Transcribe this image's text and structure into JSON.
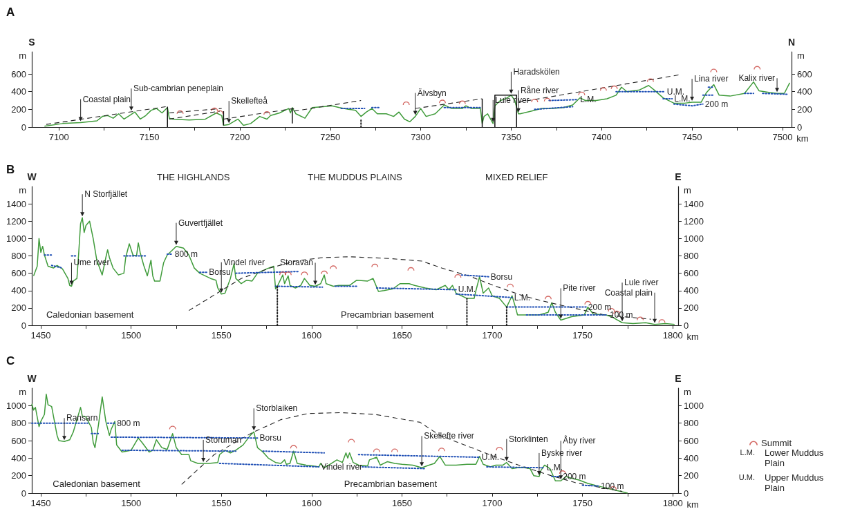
{
  "chart_data": [
    {
      "type": "line",
      "title": "A",
      "xlabel": "km",
      "ylabel": "m",
      "y2label": "m",
      "xlim": [
        7085,
        7505
      ],
      "ylim": [
        0,
        850
      ],
      "y2lim": [
        0,
        850
      ],
      "xticks": [
        7100,
        {
          "value": 7125,
          "label": null
        },
        7150,
        {
          "value": 7175,
          "label": null
        },
        7200,
        {
          "value": 7225,
          "label": null
        },
        7250,
        {
          "value": 7275,
          "label": null
        },
        7300,
        {
          "value": 7325,
          "label": null
        },
        7350,
        {
          "value": 7375,
          "label": null
        },
        7400,
        {
          "value": 7425,
          "label": null
        },
        7450,
        {
          "value": 7475,
          "label": null
        },
        7500
      ],
      "yticks": [
        0,
        200,
        400,
        600
      ],
      "y2ticks": [
        0,
        200,
        400,
        600
      ],
      "series": [
        {
          "color": "#3f9b3a",
          "line_style": "solid",
          "x": [
            7092,
            7102,
            7112,
            7121,
            7124,
            7127,
            7130,
            7133,
            7136,
            7139,
            7142,
            7145,
            7148,
            7151,
            7154,
            7157,
            7160,
            7161,
            7163,
            7172,
            7181,
            7187,
            7188,
            7190,
            7191,
            7194,
            7199,
            7202,
            7206,
            7211,
            7215,
            7217,
            7222,
            7227,
            7228,
            7229,
            7231,
            7236,
            7240,
            7246,
            7251,
            7255,
            7260,
            7264,
            7267,
            7270,
            7273,
            7276,
            7281,
            7285,
            7288,
            7291,
            7294,
            7297,
            7300,
            7303,
            7308,
            7313,
            7317,
            7323,
            7325,
            7328,
            7333,
            7334,
            7335,
            7337,
            7340,
            7341,
            7344,
            7347,
            7350,
            7352,
            7354,
            7355,
            7361,
            7367,
            7373,
            7379,
            7384,
            7388,
            7391,
            7397,
            7403,
            7408,
            7411,
            7414,
            7421,
            7426,
            7429,
            7434,
            7440,
            7446,
            7450,
            7455,
            7458,
            7462,
            7465,
            7471,
            7479,
            7484,
            7487,
            7493,
            7497,
            7501,
            7504
          ],
          "values": [
            10,
            40,
            50,
            70,
            120,
            130,
            100,
            150,
            90,
            130,
            170,
            90,
            130,
            190,
            210,
            160,
            220,
            100,
            90,
            80,
            90,
            160,
            150,
            130,
            20,
            30,
            90,
            20,
            40,
            120,
            90,
            130,
            160,
            210,
            160,
            220,
            150,
            100,
            220,
            230,
            240,
            220,
            200,
            190,
            120,
            170,
            210,
            150,
            150,
            120,
            170,
            90,
            60,
            120,
            210,
            120,
            150,
            250,
            210,
            210,
            240,
            210,
            210,
            40,
            120,
            150,
            40,
            240,
            300,
            320,
            360,
            300,
            150,
            150,
            180,
            210,
            210,
            220,
            250,
            330,
            300,
            300,
            320,
            360,
            450,
            400,
            420,
            470,
            420,
            330,
            270,
            270,
            280,
            280,
            390,
            480,
            360,
            350,
            380,
            510,
            410,
            390,
            380,
            380,
            500
          ]
        },
        {
          "type": "scatter",
          "color": "#c8403a",
          "x": [
            7167,
            7186,
            7189,
            7215,
            7292,
            7312,
            7323,
            7363,
            7370,
            7389,
            7401,
            7407,
            7427,
            7462,
            7486
          ],
          "values": [
            170,
            200,
            170,
            160,
            270,
            290,
            280,
            300,
            310,
            380,
            430,
            450,
            530,
            640,
            670
          ]
        },
        {
          "color": "#1f4fb5",
          "line_style": "dotted",
          "x": [
            7256,
            7269
          ],
          "values": [
            210,
            210
          ]
        },
        {
          "color": "#1f4fb5",
          "line_style": "dotted",
          "x": [
            7273,
            7277
          ],
          "values": [
            220,
            220
          ]
        },
        {
          "color": "#1f4fb5",
          "line_style": "dotted",
          "x": [
            7313,
            7333
          ],
          "values": [
            220,
            220
          ]
        },
        {
          "color": "#1f4fb5",
          "line_style": "dotted",
          "x": [
            7363,
            7384
          ],
          "values": [
            200,
            230
          ]
        },
        {
          "color": "#1f4fb5",
          "line_style": "dotted",
          "x": [
            7371,
            7387
          ],
          "values": [
            300,
            310
          ]
        },
        {
          "color": "#1f4fb5",
          "line_style": "dotted",
          "x": [
            7408,
            7435
          ],
          "values": [
            400,
            400
          ]
        },
        {
          "color": "#1f4fb5",
          "line_style": "dotted",
          "x": [
            7434,
            7439
          ],
          "values": [
            320,
            320
          ]
        },
        {
          "color": "#1f4fb5",
          "line_style": "dotted",
          "x": [
            7440,
            7450,
            7456
          ],
          "values": [
            260,
            240,
            260
          ]
        },
        {
          "color": "#1f4fb5",
          "line_style": "dotted",
          "x": [
            7456,
            7462
          ],
          "values": [
            360,
            360
          ]
        },
        {
          "color": "#1f4fb5",
          "line_style": "dotted",
          "x": [
            7459,
            7462
          ],
          "values": [
            450,
            450
          ]
        },
        {
          "color": "#1f4fb5",
          "line_style": "dotted",
          "x": [
            7479,
            7484
          ],
          "values": [
            380,
            380
          ]
        },
        {
          "color": "#1f4fb5",
          "line_style": "dotted",
          "x": [
            7489,
            7503
          ],
          "values": [
            380,
            370
          ]
        },
        {
          "color": "#222222",
          "line_style": "dashed",
          "x": [
            7093,
            7159
          ],
          "values": [
            30,
            230
          ]
        },
        {
          "color": "#222222",
          "line_style": "dashed",
          "x": [
            7161,
            7190
          ],
          "values": [
            160,
            210
          ]
        },
        {
          "color": "#222222",
          "line_style": "dashed",
          "x": [
            7161,
            7189
          ],
          "values": [
            90,
            180
          ]
        },
        {
          "color": "#222222",
          "line_style": "dashed",
          "x": [
            7191,
            7230
          ],
          "values": [
            90,
            210
          ]
        },
        {
          "color": "#222222",
          "line_style": "dashed",
          "x": [
            7230,
            7267
          ],
          "values": [
            180,
            300
          ]
        },
        {
          "color": "#222222",
          "line_style": "dashed",
          "x": [
            7297,
            7334
          ],
          "values": [
            210,
            320
          ]
        },
        {
          "color": "#222222",
          "line_style": "dashed",
          "x": [
            7354,
            7443
          ],
          "values": [
            280,
            590
          ]
        },
        {
          "color": "#222222",
          "line_style": "dotted",
          "x": [
            7267,
            7267
          ],
          "values": [
            0,
            90
          ]
        },
        {
          "color": "#111111",
          "line_style": "solid",
          "x": [
            7160,
            7160
          ],
          "values": [
            0,
            230
          ]
        },
        {
          "color": "#111111",
          "line_style": "solid",
          "x": [
            7191,
            7191
          ],
          "values": [
            20,
            180
          ]
        },
        {
          "color": "#111111",
          "line_style": "solid",
          "x": [
            7229,
            7229
          ],
          "values": [
            40,
            210
          ]
        },
        {
          "color": "#111111",
          "line_style": "solid",
          "x": [
            7334,
            7334
          ],
          "values": [
            0,
            320
          ]
        },
        {
          "color": "#111111",
          "line_style": "solid",
          "x": [
            7341,
            7341,
            7353,
            7353
          ],
          "values": [
            0,
            360,
            360,
            0
          ]
        }
      ],
      "annotations": [
        "S",
        "N",
        {
          "text": "Coastal plain",
          "x": 7112,
          "y": 50
        },
        {
          "text": "Sub-cambrian peneplain",
          "x": 7140,
          "y": 170
        },
        {
          "text": "Skellefteå",
          "x": 7194,
          "y": 30
        },
        {
          "text": "Älvsbyn",
          "x": 7297,
          "y": 120
        },
        {
          "text": "Haradskölen",
          "x": 7350,
          "y": 360
        },
        {
          "text": "Lule river",
          "x": 7340,
          "y": 40
        },
        {
          "text": "Råne river",
          "x": 7354,
          "y": 150
        },
        {
          "text": "L.M.",
          "x": 7387,
          "y": 310
        },
        {
          "text": "U.M.",
          "x": 7435,
          "y": 400
        },
        {
          "text": "L.M.",
          "x": 7439,
          "y": 320
        },
        {
          "text": "200 m",
          "x": 7456,
          "y": 260
        },
        {
          "text": "Kalix river",
          "x": 7497,
          "y": 380
        },
        {
          "text": "Lina river",
          "x": 7450,
          "y": 280
        }
      ]
    },
    {
      "type": "line",
      "title": "B",
      "xlabel": "km",
      "ylabel": "m",
      "y2label": "m",
      "xlim": [
        1445,
        1803
      ],
      "ylim": [
        0,
        1600
      ],
      "y2lim": [
        0,
        1600
      ],
      "xticks": [
        1450,
        {
          "value": 1475,
          "label": null
        },
        1500,
        {
          "value": 1525,
          "label": null
        },
        1550,
        {
          "value": 1575,
          "label": null
        },
        1600,
        {
          "value": 1625,
          "label": null
        },
        1650,
        {
          "value": 1675,
          "label": null
        },
        1700,
        {
          "value": 1725,
          "label": null
        },
        1750,
        {
          "value": 1775,
          "label": null
        },
        1800
      ],
      "yticks": [
        0,
        200,
        400,
        600,
        800,
        1000,
        1200,
        1400
      ],
      "y2ticks": [
        0,
        200,
        400,
        600,
        800,
        1000,
        1200,
        1400
      ],
      "series": [
        {
          "color": "#3f9b3a",
          "line_style": "solid",
          "x": [
            1446,
            1448,
            1449,
            1450,
            1451,
            1452,
            1454,
            1457,
            1459,
            1462,
            1465,
            1466,
            1467,
            1468,
            1470,
            1471,
            1472,
            1473,
            1474,
            1475,
            1477,
            1479,
            1481,
            1484,
            1486,
            1487,
            1488,
            1490,
            1493,
            1496,
            1497,
            1499,
            1501,
            1503,
            1504,
            1505,
            1507,
            1509,
            1511,
            1512,
            1513,
            1516,
            1518,
            1520,
            1525,
            1529,
            1532,
            1535,
            1538,
            1544,
            1547,
            1548,
            1550,
            1552,
            1555,
            1557,
            1558,
            1561,
            1564,
            1567,
            1570,
            1575,
            1579,
            1580,
            1581,
            1584,
            1585,
            1587,
            1588,
            1591,
            1594,
            1596,
            1599,
            1602,
            1605,
            1607,
            1608,
            1612,
            1615,
            1621,
            1625,
            1631,
            1634,
            1637,
            1640,
            1645,
            1649,
            1654,
            1657,
            1663,
            1669,
            1674,
            1676,
            1678,
            1680,
            1686,
            1690,
            1691,
            1693,
            1695,
            1698,
            1700,
            1704,
            1708,
            1711,
            1713,
            1714,
            1720,
            1726,
            1731,
            1733,
            1735,
            1738,
            1744,
            1751,
            1753,
            1756,
            1763,
            1766,
            1772,
            1778,
            1785,
            1790,
            1796,
            1801
          ],
          "values": [
            570,
            680,
            1000,
            840,
            910,
            810,
            680,
            660,
            690,
            650,
            540,
            460,
            450,
            510,
            540,
            840,
            1170,
            1240,
            1070,
            1150,
            1200,
            1000,
            750,
            580,
            780,
            870,
            780,
            660,
            580,
            600,
            780,
            940,
            810,
            800,
            950,
            840,
            690,
            570,
            750,
            570,
            510,
            510,
            720,
            810,
            910,
            890,
            810,
            660,
            600,
            540,
            520,
            430,
            360,
            370,
            540,
            710,
            540,
            480,
            520,
            510,
            600,
            650,
            680,
            420,
            450,
            580,
            480,
            570,
            460,
            430,
            460,
            540,
            460,
            450,
            480,
            580,
            480,
            450,
            460,
            460,
            520,
            510,
            540,
            390,
            400,
            420,
            480,
            480,
            460,
            430,
            410,
            460,
            410,
            460,
            370,
            310,
            310,
            400,
            560,
            370,
            430,
            340,
            310,
            210,
            340,
            200,
            120,
            120,
            120,
            150,
            260,
            150,
            60,
            100,
            120,
            210,
            130,
            120,
            100,
            30,
            20,
            30,
            10,
            20,
            10
          ]
        },
        {
          "type": "scatter",
          "color": "#c8403a",
          "x": [
            1584,
            1587,
            1596,
            1607,
            1612,
            1635,
            1655,
            1681,
            1710,
            1731,
            1753,
            1766,
            1769,
            1782,
            1794
          ],
          "values": [
            600,
            600,
            600,
            610,
            670,
            690,
            650,
            570,
            460,
            320,
            260,
            180,
            150,
            80,
            50
          ]
        },
        {
          "color": "#222222",
          "line_style": "dashed",
          "x": [
            1532,
            1550,
            1561,
            1577,
            1591,
            1606,
            1621,
            1643,
            1661,
            1672,
            1687,
            1702,
            1717,
            1732,
            1747,
            1762,
            1788
          ],
          "values": [
            170,
            400,
            540,
            660,
            740,
            780,
            790,
            770,
            740,
            660,
            570,
            450,
            340,
            260,
            190,
            120,
            70
          ]
        },
        {
          "color": "#1f4fb5",
          "line_style": "dotted",
          "x": [
            1452,
            1456
          ],
          "values": [
            810,
            810
          ]
        },
        {
          "color": "#1f4fb5",
          "line_style": "dotted",
          "x": [
            1456,
            1462
          ],
          "values": [
            690,
            660
          ]
        },
        {
          "color": "#1f4fb5",
          "line_style": "dotted",
          "x": [
            1467,
            1470
          ],
          "values": [
            800,
            800
          ]
        },
        {
          "color": "#1f4fb5",
          "line_style": "dotted",
          "x": [
            1496,
            1508
          ],
          "values": [
            800,
            800
          ]
        },
        {
          "color": "#1f4fb5",
          "line_style": "dotted",
          "x": [
            1520,
            1523
          ],
          "values": [
            820,
            820
          ]
        },
        {
          "color": "#1f4fb5",
          "line_style": "dotted",
          "x": [
            1538,
            1542
          ],
          "values": [
            610,
            610
          ]
        },
        {
          "color": "#1f4fb5",
          "line_style": "dotted",
          "x": [
            1558,
            1593
          ],
          "values": [
            600,
            620
          ]
        },
        {
          "color": "#1f4fb5",
          "line_style": "dotted",
          "x": [
            1580,
            1606
          ],
          "values": [
            450,
            440
          ]
        },
        {
          "color": "#1f4fb5",
          "line_style": "dotted",
          "x": [
            1613,
            1625
          ],
          "values": [
            450,
            450
          ]
        },
        {
          "color": "#1f4fb5",
          "line_style": "dotted",
          "x": [
            1636,
            1680
          ],
          "values": [
            430,
            410
          ]
        },
        {
          "color": "#1f4fb5",
          "line_style": "dotted",
          "x": [
            1683,
            1698
          ],
          "values": [
            580,
            560
          ]
        },
        {
          "color": "#1f4fb5",
          "line_style": "dotted",
          "x": [
            1680,
            1711
          ],
          "values": [
            360,
            320
          ]
        },
        {
          "color": "#1f4fb5",
          "line_style": "dotted",
          "x": [
            1708,
            1752
          ],
          "values": [
            210,
            210
          ]
        },
        {
          "color": "#1f4fb5",
          "line_style": "dotted",
          "x": [
            1719,
            1764
          ],
          "values": [
            120,
            120
          ]
        },
        {
          "color": "#222222",
          "line_style": "dotted",
          "x": [
            1581,
            1581
          ],
          "values": [
            0,
            450
          ]
        },
        {
          "color": "#222222",
          "line_style": "dotted",
          "x": [
            1686,
            1686
          ],
          "values": [
            0,
            310
          ]
        },
        {
          "color": "#222222",
          "line_style": "dotted",
          "x": [
            1708,
            1708
          ],
          "values": [
            0,
            210
          ]
        }
      ],
      "annotations": [
        "W",
        "THE HIGHLANDS",
        "THE MUDDUS PLAINS",
        "MIXED RELIEF",
        "E",
        "Caledonian basement",
        "Precambrian basement",
        {
          "text": "N Storfjället",
          "x": 1473,
          "y": 1240
        },
        {
          "text": "Ume river",
          "x": 1467,
          "y": 450
        },
        {
          "text": "Guvertfjället",
          "x": 1525,
          "y": 910
        },
        {
          "text": "800 m",
          "x": 1523,
          "y": 820
        },
        {
          "text": "Borsu",
          "x": 1542,
          "y": 610
        },
        {
          "text": "Vindel river",
          "x": 1550,
          "y": 360
        },
        {
          "text": "Storavan",
          "x": 1602,
          "y": 450
        },
        {
          "text": "U.M.",
          "x": 1680,
          "y": 410
        },
        {
          "text": "Borsu",
          "x": 1698,
          "y": 560
        },
        {
          "text": "L.M.",
          "x": 1711,
          "y": 320
        },
        {
          "text": "Pite river",
          "x": 1738,
          "y": 60
        },
        {
          "text": "200 m",
          "x": 1752,
          "y": 210
        },
        {
          "text": "100 m",
          "x": 1764,
          "y": 120
        },
        {
          "text": "Coastal plain",
          "x": 1790,
          "y": 10
        },
        {
          "text": "Lule river",
          "x": 1772,
          "y": 30
        }
      ]
    },
    {
      "type": "line",
      "title": "C",
      "xlabel": "km",
      "ylabel": "m",
      "y2label": "m",
      "legend": "right",
      "xlim": [
        1445,
        1803
      ],
      "ylim": [
        0,
        1200
      ],
      "y2lim": [
        0,
        1200
      ],
      "xticks": [
        1450,
        {
          "value": 1475,
          "label": null
        },
        1500,
        {
          "value": 1525,
          "label": null
        },
        1550,
        {
          "value": 1575,
          "label": null
        },
        1600,
        {
          "value": 1625,
          "label": null
        },
        1650,
        {
          "value": 1675,
          "label": null
        },
        1700,
        {
          "value": 1725,
          "label": null
        },
        1750,
        {
          "value": 1775,
          "label": null
        },
        1800
      ],
      "yticks": [
        0,
        200,
        400,
        600,
        800,
        1000
      ],
      "y2ticks": [
        0,
        200,
        400,
        600,
        800,
        1000
      ],
      "series": [
        {
          "color": "#3f9b3a",
          "line_style": "solid",
          "x": [
            1445,
            1446,
            1447,
            1448,
            1449,
            1450,
            1452,
            1453,
            1454,
            1456,
            1457,
            1459,
            1460,
            1463,
            1466,
            1468,
            1470,
            1472,
            1473,
            1475,
            1478,
            1479,
            1480,
            1482,
            1484,
            1486,
            1488,
            1489,
            1491,
            1492,
            1495,
            1500,
            1504,
            1506,
            1510,
            1512,
            1514,
            1517,
            1520,
            1523,
            1525,
            1528,
            1532,
            1533,
            1537,
            1543,
            1548,
            1549,
            1552,
            1555,
            1558,
            1562,
            1566,
            1568,
            1570,
            1573,
            1576,
            1580,
            1583,
            1585,
            1586,
            1588,
            1590,
            1592,
            1597,
            1601,
            1604,
            1605,
            1607,
            1611,
            1614,
            1617,
            1619,
            1620,
            1621,
            1623,
            1626,
            1631,
            1632,
            1636,
            1638,
            1642,
            1646,
            1650,
            1656,
            1661,
            1665,
            1668,
            1671,
            1674,
            1680,
            1686,
            1691,
            1693,
            1695,
            1699,
            1702,
            1706,
            1708,
            1711,
            1714,
            1718,
            1721,
            1723,
            1726,
            1727,
            1729,
            1732,
            1735,
            1738,
            1741,
            1744,
            1748,
            1753,
            1759,
            1765,
            1771,
            1775
          ],
          "values": [
            1020,
            950,
            980,
            870,
            760,
            820,
            900,
            1130,
            1010,
            990,
            880,
            660,
            600,
            590,
            610,
            700,
            840,
            980,
            880,
            870,
            750,
            580,
            520,
            790,
            1100,
            820,
            660,
            730,
            820,
            550,
            470,
            490,
            630,
            580,
            470,
            490,
            610,
            520,
            500,
            680,
            520,
            440,
            440,
            370,
            340,
            340,
            350,
            440,
            490,
            460,
            490,
            550,
            660,
            700,
            520,
            470,
            400,
            350,
            340,
            380,
            330,
            340,
            480,
            340,
            320,
            310,
            300,
            340,
            290,
            340,
            380,
            350,
            460,
            400,
            460,
            350,
            320,
            310,
            380,
            410,
            320,
            360,
            340,
            330,
            320,
            290,
            320,
            340,
            420,
            320,
            320,
            330,
            330,
            420,
            330,
            300,
            320,
            320,
            350,
            280,
            290,
            290,
            280,
            200,
            190,
            260,
            320,
            280,
            140,
            140,
            190,
            170,
            150,
            110,
            80,
            50,
            20,
            0
          ]
        },
        {
          "type": "scatter",
          "name": "Summit",
          "color": "#c8403a",
          "x": [
            1523,
            1590,
            1622,
            1636,
            1646,
            1672,
            1704,
            1739,
            1767
          ],
          "values": [
            750,
            530,
            600,
            490,
            490,
            500,
            510,
            240,
            60
          ]
        },
        {
          "color": "#222222",
          "line_style": "dashed",
          "x": [
            1528,
            1546,
            1567,
            1583,
            1598,
            1616,
            1635,
            1660,
            1671,
            1686,
            1701,
            1716,
            1731,
            1746,
            1761,
            1772
          ],
          "values": [
            100,
            440,
            690,
            840,
            910,
            920,
            900,
            810,
            660,
            540,
            420,
            310,
            210,
            120,
            60,
            20
          ]
        },
        {
          "color": "#1f4fb5",
          "line_style": "dotted",
          "x": [
            1445,
            1476
          ],
          "values": [
            800,
            800
          ]
        },
        {
          "color": "#1f4fb5",
          "line_style": "dotted",
          "x": [
            1487,
            1491
          ],
          "values": [
            800,
            800
          ]
        },
        {
          "color": "#1f4fb5",
          "line_style": "dotted",
          "x": [
            1478,
            1482
          ],
          "values": [
            680,
            680
          ]
        },
        {
          "color": "#1f4fb5",
          "line_style": "dotted",
          "x": [
            1489,
            1570
          ],
          "values": [
            640,
            630
          ]
        },
        {
          "color": "#1f4fb5",
          "line_style": "dotted",
          "x": [
            1495,
            1558
          ],
          "values": [
            490,
            480
          ]
        },
        {
          "color": "#1f4fb5",
          "line_style": "dotted",
          "x": [
            1573,
            1607
          ],
          "values": [
            480,
            460
          ]
        },
        {
          "color": "#1f4fb5",
          "line_style": "dotted",
          "x": [
            1549,
            1604
          ],
          "values": [
            340,
            300
          ]
        },
        {
          "color": "#1f4fb5",
          "line_style": "dotted",
          "x": [
            1626,
            1693
          ],
          "values": [
            440,
            410
          ]
        },
        {
          "color": "#1f4fb5",
          "line_style": "dotted",
          "x": [
            1628,
            1663
          ],
          "values": [
            300,
            280
          ]
        },
        {
          "color": "#1f4fb5",
          "line_style": "dotted",
          "x": [
            1697,
            1729
          ],
          "values": [
            300,
            290
          ]
        },
        {
          "color": "#1f4fb5",
          "line_style": "dotted",
          "x": [
            1733,
            1738
          ],
          "values": [
            190,
            190
          ]
        },
        {
          "color": "#1f4fb5",
          "line_style": "dotted",
          "x": [
            1750,
            1759
          ],
          "values": [
            90,
            80
          ]
        }
      ],
      "annotations": [
        "W",
        "E",
        "Caledonian basement",
        "Precambrian basement",
        {
          "text": "Ransarn",
          "x": 1463,
          "y": 590
        },
        {
          "text": "800 m",
          "x": 1491,
          "y": 800
        },
        {
          "text": "Storuman",
          "x": 1540,
          "y": 340
        },
        {
          "text": "Storblaiken",
          "x": 1568,
          "y": 700
        },
        {
          "text": "Borsu",
          "x": 1570,
          "y": 630
        },
        {
          "text": "Vindel river",
          "x": 1604,
          "y": 300
        },
        {
          "text": "Skellefte river",
          "x": 1661,
          "y": 290
        },
        {
          "text": "Storklinten",
          "x": 1708,
          "y": 350
        },
        {
          "text": "U.M.",
          "x": 1693,
          "y": 410
        },
        {
          "text": "Byske river",
          "x": 1726,
          "y": 190
        },
        {
          "text": "Åby river",
          "x": 1738,
          "y": 140
        },
        {
          "text": "L.M.",
          "x": 1729,
          "y": 290
        },
        {
          "text": "200 m",
          "x": 1738,
          "y": 190
        },
        {
          "text": "100 m",
          "x": 1759,
          "y": 80
        }
      ]
    },
    {
      "type": "other",
      "annotations": [
        "L.M.",
        "Lower Muddus Plain",
        "U.M.",
        "Upper Muddus Plain"
      ]
    }
  ]
}
